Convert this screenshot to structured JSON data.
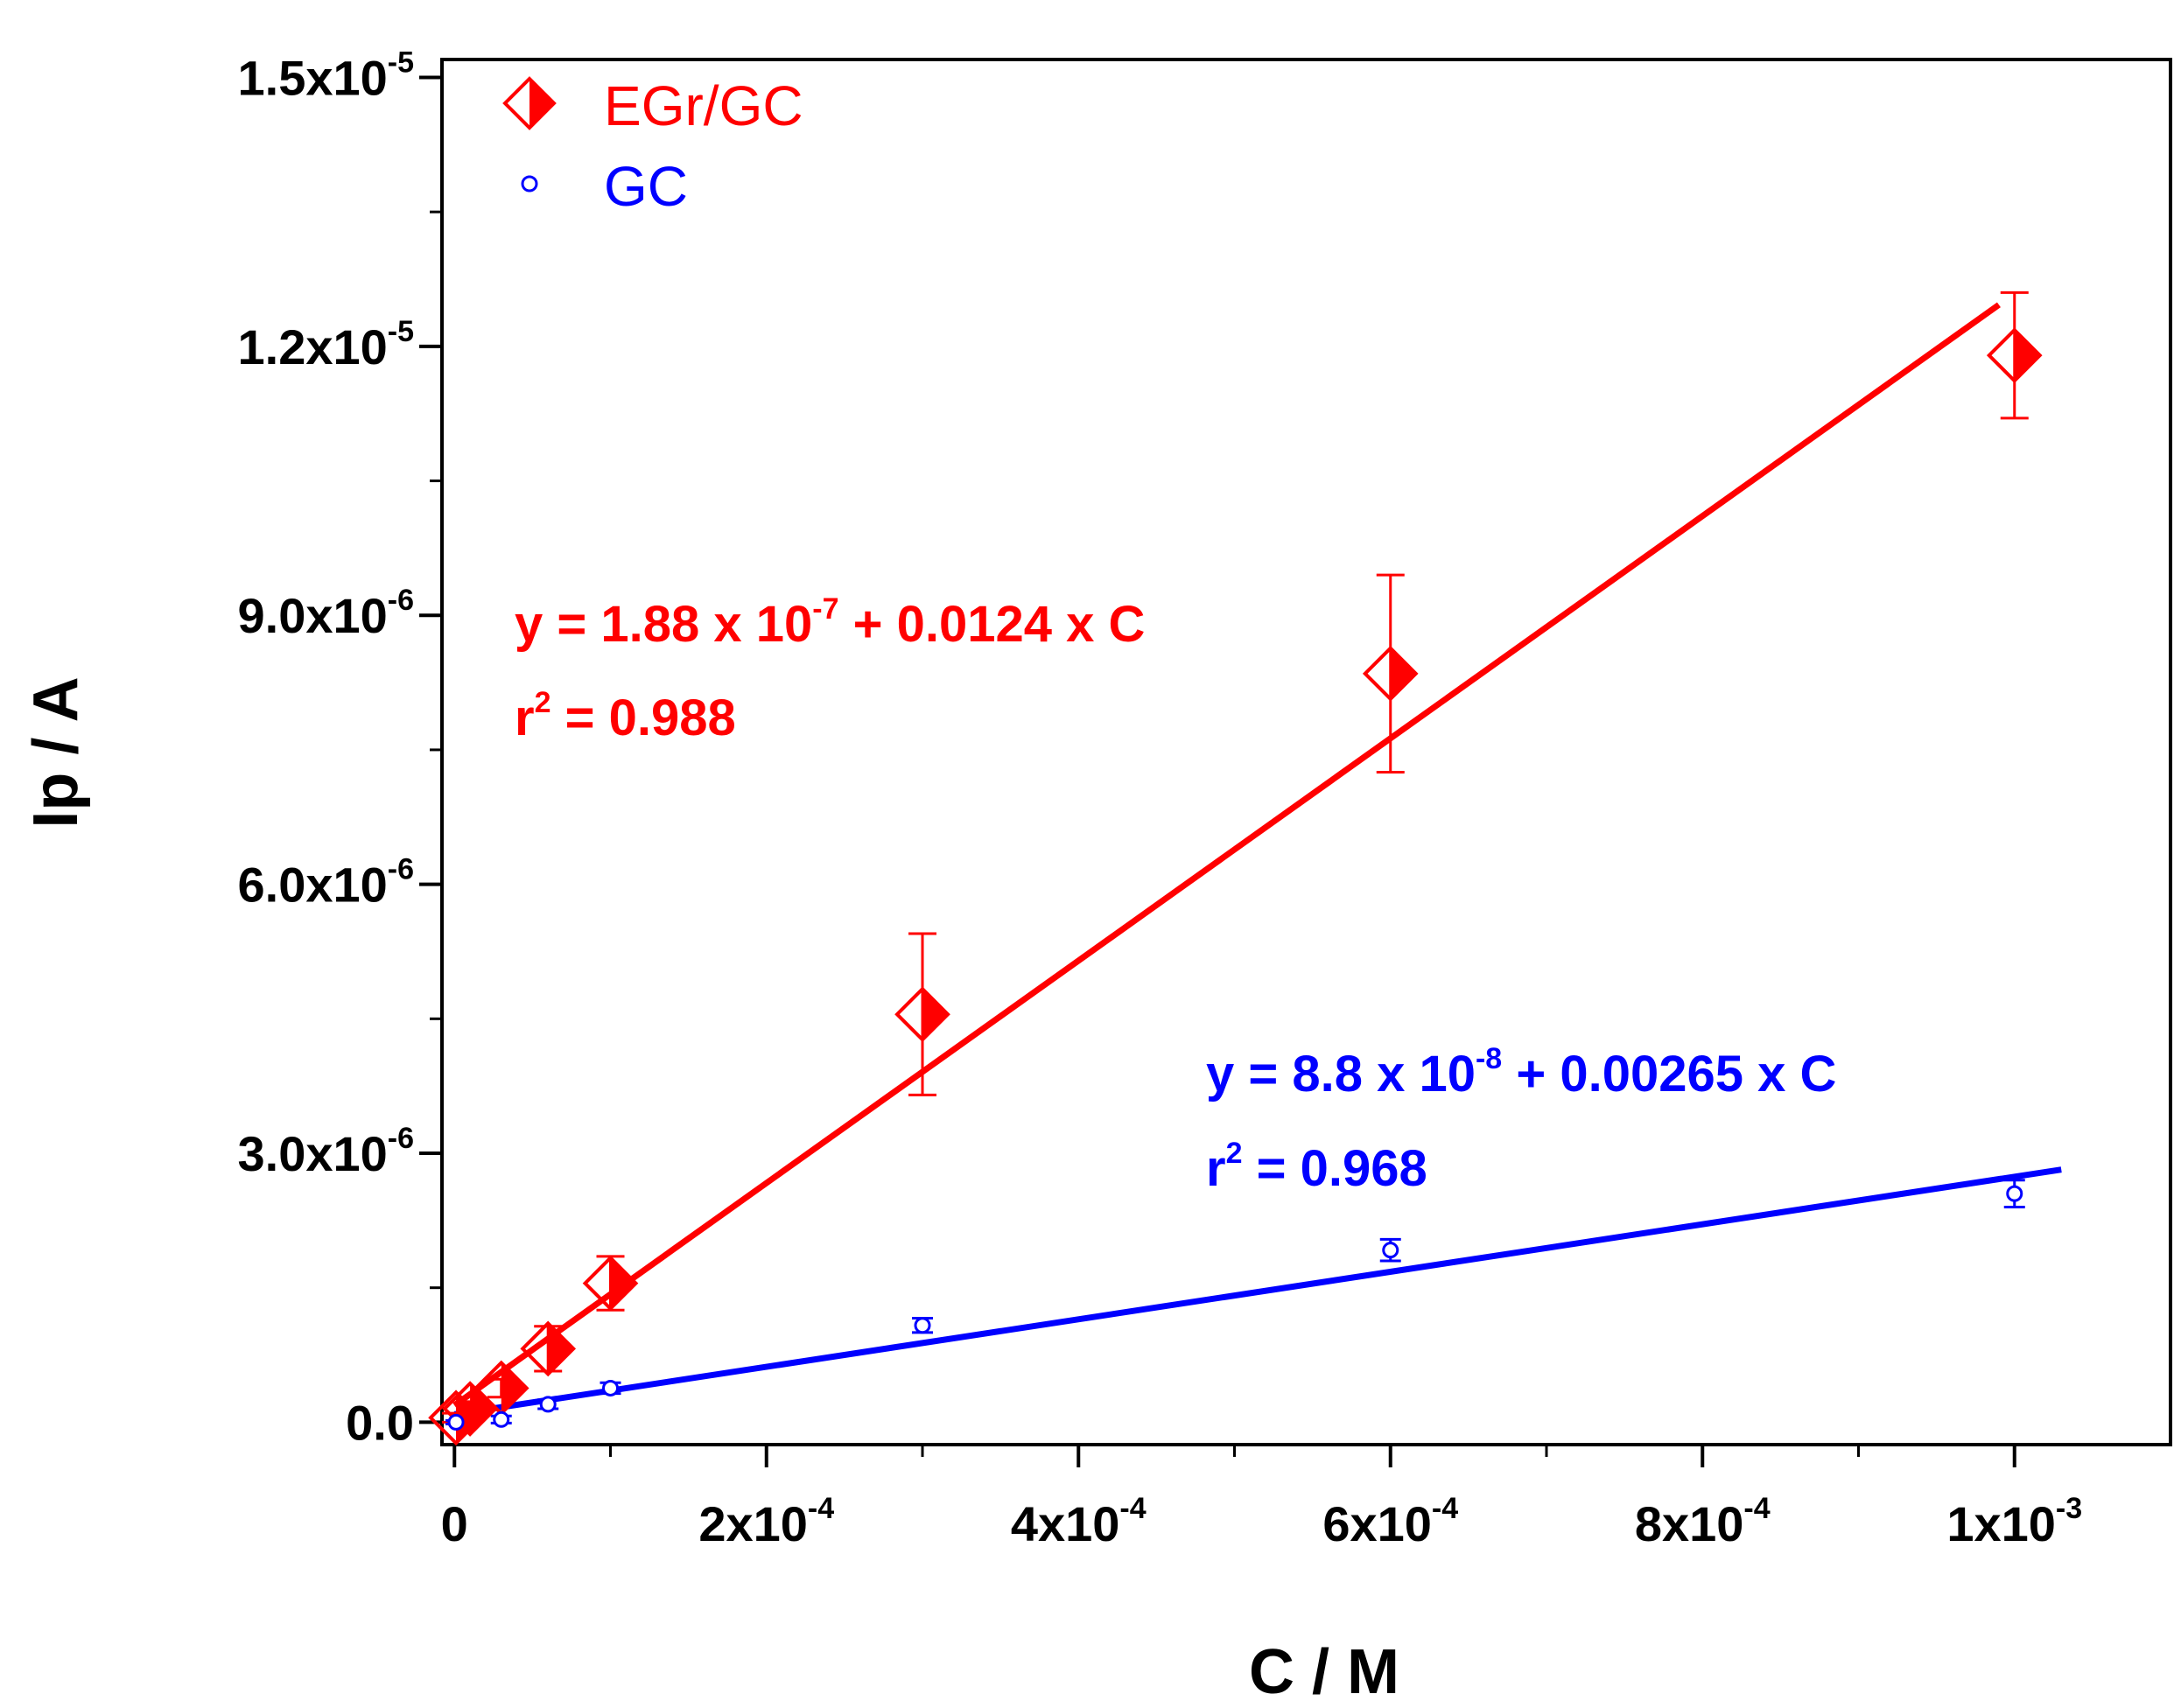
{
  "chart_data": {
    "type": "scatter",
    "title": "",
    "xlabel": "C / M",
    "ylabel": "Ip / A",
    "xlim": [
      -8e-06,
      0.0011
    ],
    "ylim": [
      -2.5e-07,
      1.52e-05
    ],
    "x_ticks": [
      {
        "value": 0,
        "mant": "0",
        "exp": ""
      },
      {
        "value": 0.0002,
        "mant": "2x10",
        "exp": "-4"
      },
      {
        "value": 0.0004,
        "mant": "4x10",
        "exp": "-4"
      },
      {
        "value": 0.0006,
        "mant": "6x10",
        "exp": "-4"
      },
      {
        "value": 0.0008,
        "mant": "8x10",
        "exp": "-4"
      },
      {
        "value": 0.001,
        "mant": "1x10",
        "exp": "-3"
      }
    ],
    "y_ticks": [
      {
        "value": 0,
        "mant": "0.0",
        "exp": ""
      },
      {
        "value": 3e-06,
        "mant": "3.0x10",
        "exp": "-6"
      },
      {
        "value": 6e-06,
        "mant": "6.0x10",
        "exp": "-6"
      },
      {
        "value": 9e-06,
        "mant": "9.0x10",
        "exp": "-6"
      },
      {
        "value": 1.2e-05,
        "mant": "1.2x10",
        "exp": "-5"
      },
      {
        "value": 1.5e-05,
        "mant": "1.5x10",
        "exp": "-5"
      }
    ],
    "legend": {
      "position": "top-left",
      "entries": [
        {
          "label": "EGr/GC",
          "marker": "half-filled-diamond",
          "color": "#ff0000"
        },
        {
          "label": "GC",
          "marker": "open-circle",
          "color": "#0000ff"
        }
      ]
    },
    "series": [
      {
        "name": "EGr/GC",
        "color": "#ff0000",
        "marker": "half-filled-diamond",
        "x": [
          1e-06,
          1e-05,
          3e-05,
          6e-05,
          0.0001,
          0.0003,
          0.0006,
          0.001
        ],
        "y": [
          5e-08,
          1.5e-07,
          3.8e-07,
          8.2e-07,
          1.55e-06,
          4.55e-06,
          8.35e-06,
          1.19e-05
        ],
        "err": [
          5e-08,
          8e-08,
          1e-07,
          2.5e-07,
          3e-07,
          9e-07,
          1.1e-06,
          7e-07
        ],
        "fit": {
          "intercept": 1.88e-07,
          "slope": 0.0124,
          "x_range": [
            0,
            0.00099
          ]
        },
        "equation": {
          "prefix": "y = 1.88 x 10",
          "sup": "-7",
          "suffix": " + 0.0124 x C"
        },
        "r2": {
          "prefix": "r",
          "sup": "2",
          "suffix": " = 0.988"
        }
      },
      {
        "name": "GC",
        "color": "#0000ff",
        "marker": "open-circle",
        "x": [
          1e-06,
          3e-05,
          6e-05,
          0.0001,
          0.0003,
          0.0006,
          0.001
        ],
        "y": [
          0.0,
          3e-08,
          2e-07,
          3.8e-07,
          1.08e-06,
          1.92e-06,
          2.55e-06
        ],
        "err": [
          2e-08,
          4e-08,
          5e-08,
          6e-08,
          8e-08,
          1.2e-07,
          1.5e-07
        ],
        "fit": {
          "intercept": 8.8e-08,
          "slope": 0.00265,
          "x_range": [
            0,
            0.00103
          ]
        },
        "equation": {
          "prefix": "y = 8.8 x 10",
          "sup": "-8",
          "suffix": " + 0.00265 x C"
        },
        "r2": {
          "prefix": "r",
          "sup": "2",
          "suffix": " = 0.968"
        }
      }
    ]
  }
}
